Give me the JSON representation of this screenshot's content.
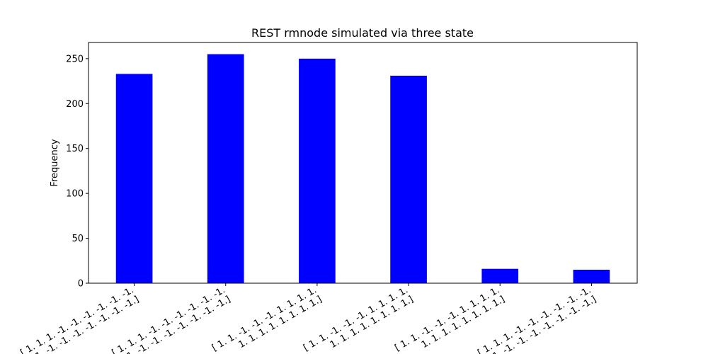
{
  "chart_data": {
    "type": "bar",
    "title": "REST rmnode simulated via three state",
    "xlabel": "",
    "ylabel": "Frequency",
    "ylim": [
      0,
      268
    ],
    "yticks": [
      0,
      50,
      100,
      150,
      200,
      250
    ],
    "grid": false,
    "bar_color": "#0000ff",
    "categories": [
      [
        "[ 1.  1.  1. -1. -1. -1. -1. -1. -1.",
        "-1. -1. -1. -1. -1. -1. -1. -1.]"
      ],
      [
        "[ 1.  1.  1. -1. -1. -1. -1. -1. -1.",
        "-1. -1. -1. -1. -1. -1. -1. -1.]"
      ],
      [
        "[ 1.  1. -1. -1. -1.  1.  1.  1.  1.",
        " 1.  1.  1.  1.  1.  1.  1.  1.]"
      ],
      [
        "[ 1.  1. -1. -1. -1.  1.  1.  1.  1.",
        " 1.  1.  1.  1.  1.  1.  1.  1.]"
      ],
      [
        "[ 1.  1. -1. -1. -1.  1.  1.  1.  1.",
        " 1.  1.  1.  1.  1.  1.  1.  1.]"
      ],
      [
        "[ 1.  1.  1. -1. -1. -1. -1. -1. -1.",
        "-1. -1. -1. -1. -1. -1. -1. -1.]"
      ]
    ],
    "values": [
      233,
      255,
      250,
      231,
      16,
      15
    ]
  }
}
